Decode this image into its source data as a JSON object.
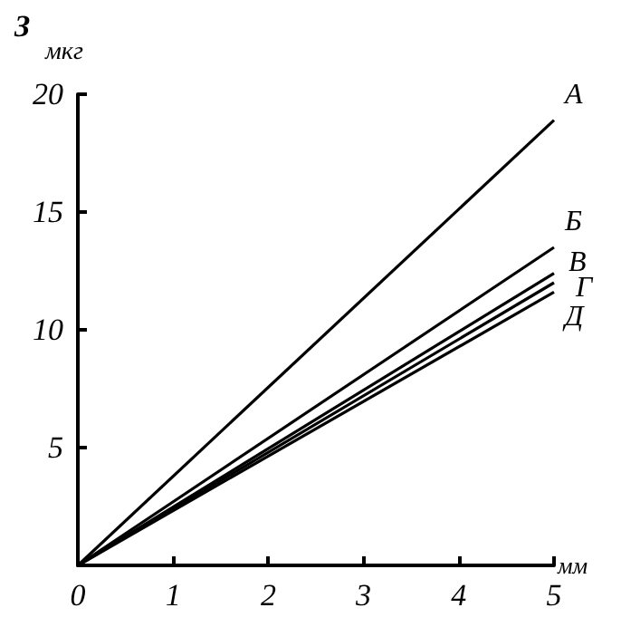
{
  "chart_data": {
    "type": "line",
    "xlabel": "мм",
    "ylabel": "З",
    "annotations": [
      "мкг"
    ],
    "x": [
      0,
      5
    ],
    "series": [
      {
        "name": "А",
        "color": "#000000",
        "values": [
          0,
          18.9
        ]
      },
      {
        "name": "Б",
        "color": "#000000",
        "values": [
          0,
          13.5
        ]
      },
      {
        "name": "В",
        "color": "#000000",
        "values": [
          0,
          12.4
        ]
      },
      {
        "name": "Г",
        "color": "#000000",
        "values": [
          0,
          12.0
        ]
      },
      {
        "name": "Д",
        "color": "#000000",
        "values": [
          0,
          11.6
        ]
      }
    ],
    "xlim": [
      0,
      5
    ],
    "ylim": [
      0,
      20
    ],
    "xticks": [
      0,
      1,
      2,
      3,
      4,
      5
    ],
    "yticks": [
      5,
      10,
      15,
      20
    ],
    "grid": false,
    "legend": false,
    "marker": "none",
    "line_style": "solid"
  }
}
